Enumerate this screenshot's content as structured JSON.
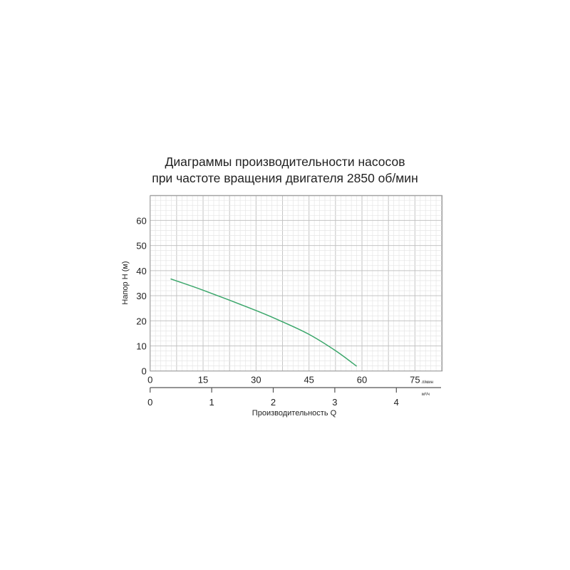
{
  "chart_data": {
    "type": "line",
    "title_lines": [
      "Диаграммы производительности насосов",
      "при частоте вращения двигателя 2850 об/мин"
    ],
    "ylabel": "Напор H (м)",
    "xlabel": "Производительность  Q",
    "x_unit_primary": "л/мин",
    "x_unit_secondary": "м³/ч",
    "xlim": [
      0,
      82.5
    ],
    "ylim": [
      0,
      70
    ],
    "x_ticks": [
      0,
      15,
      30,
      45,
      60,
      75
    ],
    "y_ticks": [
      0,
      10,
      20,
      30,
      40,
      50,
      60
    ],
    "x2_ticks": [
      0,
      1,
      2,
      3,
      4
    ],
    "grid": true,
    "series": [
      {
        "color": "#3aa66a",
        "x": [
          5.8,
          15,
          30,
          37.5,
          45,
          52.5,
          58.5
        ],
        "y": [
          36.7,
          32.2,
          24.1,
          19.6,
          14.6,
          8.1,
          1.9
        ]
      }
    ]
  }
}
